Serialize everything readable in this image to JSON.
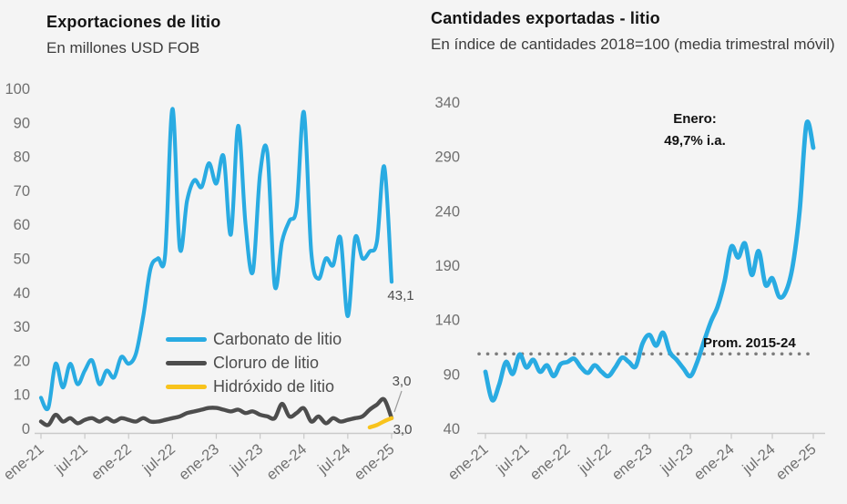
{
  "page": {
    "background": "#f4f4f4"
  },
  "chart_data": [
    {
      "type": "line",
      "title": "Exportaciones de litio",
      "subtitle": "En millones USD FOB",
      "xlabel": "",
      "ylabel": "",
      "ylim": [
        0,
        100
      ],
      "y_ticks": [
        0,
        10,
        20,
        30,
        40,
        50,
        60,
        70,
        80,
        90,
        100
      ],
      "grid": false,
      "legend_position": "inside-bottom-center",
      "x_tick_labels": [
        "ene-21",
        "jul-21",
        "ene-22",
        "jul-22",
        "ene-23",
        "jul-23",
        "ene-24",
        "jul-24",
        "ene-25"
      ],
      "x": [
        "ene-21",
        "feb-21",
        "mar-21",
        "abr-21",
        "may-21",
        "jun-21",
        "jul-21",
        "ago-21",
        "sep-21",
        "oct-21",
        "nov-21",
        "dic-21",
        "ene-22",
        "feb-22",
        "mar-22",
        "abr-22",
        "may-22",
        "jun-22",
        "jul-22",
        "ago-22",
        "sep-22",
        "oct-22",
        "nov-22",
        "dic-22",
        "ene-23",
        "feb-23",
        "mar-23",
        "abr-23",
        "may-23",
        "jun-23",
        "jul-23",
        "ago-23",
        "sep-23",
        "oct-23",
        "nov-23",
        "dic-23",
        "ene-24",
        "feb-24",
        "mar-24",
        "abr-24",
        "may-24",
        "jun-24",
        "jul-24",
        "ago-24",
        "sep-24",
        "oct-24",
        "nov-24",
        "dic-24",
        "ene-25"
      ],
      "series": [
        {
          "name": "Carbonato de litio",
          "color": "#29ABE2",
          "values": [
            9,
            6,
            19,
            12,
            19,
            13,
            17,
            20,
            13,
            17,
            15,
            21,
            19,
            22,
            33,
            47,
            50,
            51,
            94,
            53,
            67,
            73,
            71,
            78,
            72,
            80,
            57,
            89,
            60,
            46,
            75,
            81,
            42,
            55,
            61,
            65,
            93,
            52,
            44,
            50,
            48,
            56,
            33,
            56,
            50,
            52,
            55,
            77,
            43.1
          ]
        },
        {
          "name": "Cloruro de litio",
          "color": "#4D4D4D",
          "values": [
            2,
            1,
            4,
            2,
            3,
            1.5,
            2.5,
            3,
            2,
            3,
            2,
            3,
            2.5,
            2,
            3,
            2,
            2,
            2.5,
            3,
            3.5,
            4.5,
            5,
            5.5,
            6,
            6,
            5.5,
            5,
            5.5,
            4.5,
            5,
            4,
            3.5,
            3,
            7.2,
            3.5,
            4.5,
            5.9,
            2,
            3.5,
            1.5,
            3,
            2,
            2.5,
            3,
            3.5,
            5.5,
            7,
            8.5,
            3
          ]
        },
        {
          "name": "Hidróxido de litio",
          "color": "#F8C31C",
          "values": [
            null,
            null,
            null,
            null,
            null,
            null,
            null,
            null,
            null,
            null,
            null,
            null,
            null,
            null,
            null,
            null,
            null,
            null,
            null,
            null,
            null,
            null,
            null,
            null,
            null,
            null,
            null,
            null,
            null,
            null,
            null,
            null,
            null,
            null,
            null,
            null,
            null,
            null,
            null,
            null,
            null,
            null,
            null,
            null,
            null,
            0.3,
            1,
            2.1,
            3
          ]
        }
      ],
      "annotations": {
        "carbonato_last": "43,1",
        "cloruro_last": "3,0",
        "hidroxido_last": "3,0"
      }
    },
    {
      "type": "line",
      "title": "Cantidades exportadas - litio",
      "subtitle": "En índice de cantidades 2018=100 (media trimestral móvil)",
      "xlabel": "",
      "ylabel": "",
      "ylim": [
        40,
        340
      ],
      "y_ticks": [
        40,
        90,
        140,
        190,
        240,
        290,
        340
      ],
      "grid": false,
      "legend_position": "none",
      "x_tick_labels": [
        "ene-21",
        "jul-21",
        "ene-22",
        "jul-22",
        "ene-23",
        "jul-23",
        "ene-24",
        "jul-24",
        "ene-25"
      ],
      "x": [
        "ene-21",
        "feb-21",
        "mar-21",
        "abr-21",
        "may-21",
        "jun-21",
        "jul-21",
        "ago-21",
        "sep-21",
        "oct-21",
        "nov-21",
        "dic-21",
        "ene-22",
        "feb-22",
        "mar-22",
        "abr-22",
        "may-22",
        "jun-22",
        "jul-22",
        "ago-22",
        "sep-22",
        "oct-22",
        "nov-22",
        "dic-22",
        "ene-23",
        "feb-23",
        "mar-23",
        "abr-23",
        "may-23",
        "jun-23",
        "jul-23",
        "ago-23",
        "sep-23",
        "oct-23",
        "nov-23",
        "dic-23",
        "ene-24",
        "feb-24",
        "mar-24",
        "abr-24",
        "may-24",
        "jun-24",
        "jul-24",
        "ago-24",
        "sep-24",
        "oct-24",
        "nov-24",
        "dic-24",
        "ene-25"
      ],
      "series": [
        {
          "name": "Cantidades exportadas de litio",
          "color": "#29ABE2",
          "values": [
            92,
            66,
            80,
            101,
            90,
            108,
            96,
            103,
            92,
            98,
            88,
            99,
            101,
            104,
            96,
            91,
            98,
            92,
            88,
            96,
            105,
            101,
            97,
            118,
            126,
            116,
            128,
            110,
            103,
            95,
            88,
            101,
            120,
            138,
            152,
            175,
            207,
            197,
            210,
            181,
            203,
            172,
            178,
            161,
            166,
            190,
            240,
            320,
            298
          ]
        }
      ],
      "reference_line": {
        "label": "Prom. 2015-24",
        "value": 108.5,
        "color": "#7D7D7D",
        "style": "dotted"
      },
      "annotations": {
        "callout_line1": "Enero:",
        "callout_line2": "49,7% i.a."
      }
    }
  ]
}
